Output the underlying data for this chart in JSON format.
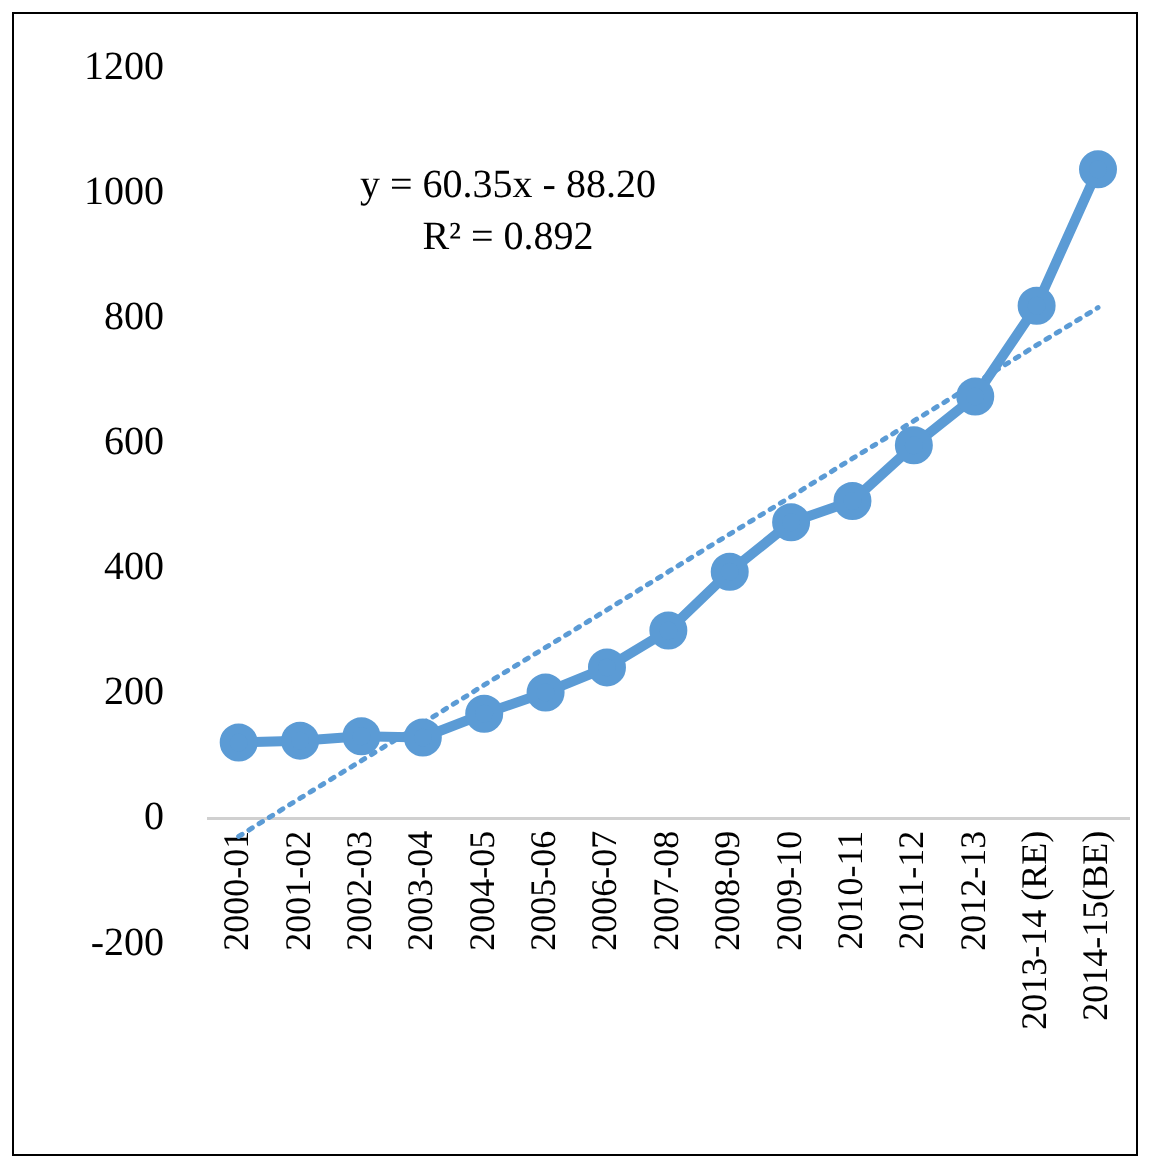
{
  "chart_data": {
    "type": "line",
    "categories": [
      "2000-01",
      "2001-02",
      "2002-03",
      "2003-04",
      "2004-05",
      "2005-06",
      "2006-07",
      "2007-08",
      "2008-09",
      "2009-10",
      "2010-11",
      "2011-12",
      "2012-13",
      "2013-14 (RE)",
      "2014-15(BE)"
    ],
    "series": [
      {
        "color": "#5b9bd5",
        "marker": "circle",
        "line_style": "solid",
        "values": [
          122,
          125,
          132,
          130,
          168,
          202,
          242,
          301,
          395,
          474,
          508,
          597,
          675,
          820,
          1038
        ]
      },
      {
        "type": "line",
        "color": "#5b9bd5",
        "marker": "none",
        "line_style": "dotted",
        "values": [
          -28,
          33,
          93,
          153,
          214,
          274,
          334,
          395,
          455,
          515,
          576,
          636,
          696,
          757,
          817
        ]
      }
    ],
    "ylim": [
      -200,
      1200
    ],
    "yticks": [
      -200,
      0,
      200,
      400,
      600,
      800,
      1000,
      1200
    ],
    "grid": false,
    "legend": false,
    "annotations": [
      "y = 60.35x - 88.20",
      "R² = 0.892"
    ]
  }
}
